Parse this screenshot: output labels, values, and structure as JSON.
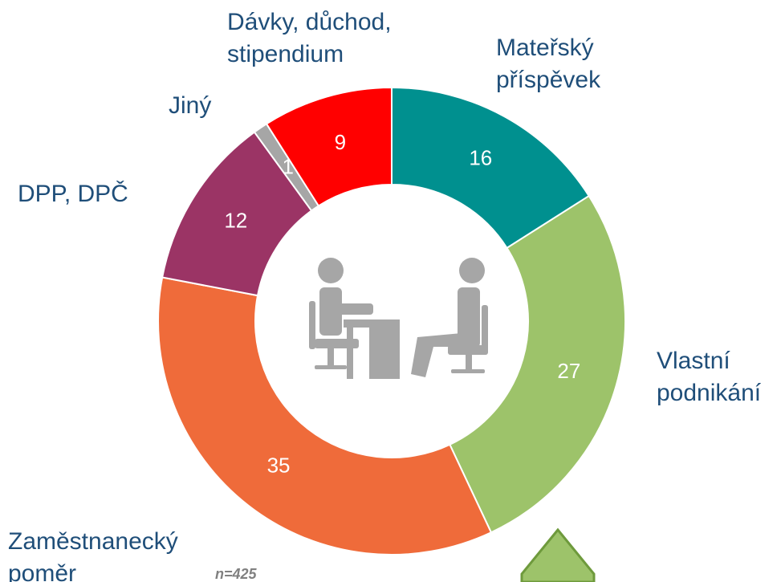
{
  "chart_data": {
    "type": "donut",
    "categories": [
      "Mateřský příspěvek",
      "Vlastní podnikání",
      "Zaměstnanecký poměr",
      "DPP, DPČ",
      "Jiný",
      "Dávky, důchod, stipendium"
    ],
    "values": [
      16,
      27,
      35,
      12,
      1,
      9
    ],
    "colors": [
      "#00908f",
      "#9dc36a",
      "#ef6b3a",
      "#9b3465",
      "#a6a6a6",
      "#ff0000"
    ],
    "note": "n=425"
  }
}
